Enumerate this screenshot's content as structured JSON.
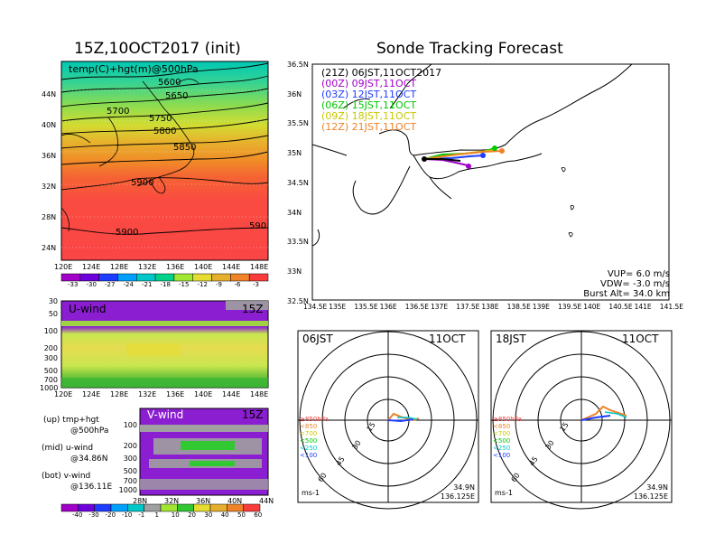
{
  "titles": {
    "left": "15Z,10OCT2017 (init)",
    "right": "Sonde Tracking Forecast"
  },
  "map500": {
    "label": "temp(C)+hgt(m)@500hPa",
    "xticks": [
      "120E",
      "124E",
      "128E",
      "132E",
      "136E",
      "140E",
      "144E",
      "148E"
    ],
    "yticks": [
      "24N",
      "28N",
      "32N",
      "36N",
      "40N",
      "44N"
    ],
    "contour_labels": [
      "5600",
      "5650",
      "5700",
      "5750",
      "5800",
      "5850",
      "5900",
      "5900",
      "590"
    ],
    "colorbar": [
      "-33",
      "-30",
      "-27",
      "-24",
      "-21",
      "-18",
      "-15",
      "-12",
      "-9",
      "-6",
      "-3"
    ],
    "colors": [
      "#a000c8",
      "#6e00dc",
      "#1e3cff",
      "#00a0ff",
      "#00c8c8",
      "#00d28c",
      "#a0e632",
      "#e6dc32",
      "#e6af2d",
      "#f08228",
      "#fa3c3c"
    ]
  },
  "uwind": {
    "label": "U-wind",
    "time": "15Z",
    "yticks": [
      "30",
      "50",
      "100",
      "200",
      "300",
      "500",
      "700",
      "1000"
    ],
    "xticks": [
      "120E",
      "124E",
      "128E",
      "132E",
      "136E",
      "140E",
      "144E",
      "148E"
    ]
  },
  "vwind": {
    "label": "V-wind",
    "time": "15Z",
    "yticks": [
      "100",
      "200",
      "300",
      "500",
      "700",
      "1000"
    ],
    "xticks": [
      "28N",
      "32N",
      "36N",
      "40N",
      "44N"
    ],
    "colorbar": [
      "-40",
      "-30",
      "-20",
      "-10",
      "-1",
      "1",
      "10",
      "20",
      "30",
      "40",
      "50",
      "60"
    ],
    "colors": [
      "#a000c8",
      "#6e00dc",
      "#1e3cff",
      "#00a0ff",
      "#00c8c8",
      "#a0a0a0",
      "#a0e632",
      "#32c832",
      "#e6dc32",
      "#e6af2d",
      "#f08228",
      "#fa3c3c"
    ]
  },
  "side_text": {
    "up1": "(up) tmp+hgt",
    "up2": "@500hPa",
    "mid1": "(mid) u-wind",
    "mid2": "@34.86N",
    "bot1": "(bot) v-wind",
    "bot2": "@136.11E"
  },
  "track": {
    "legend": [
      {
        "text": "(21Z) 06JST,11OCT2017",
        "color": "#000000"
      },
      {
        "text": "(00Z) 09JST,11OCT",
        "color": "#a000c8"
      },
      {
        "text": "(03Z) 12JST,11OCT",
        "color": "#1e3cff"
      },
      {
        "text": "(06Z) 15JST,11OCT",
        "color": "#00c800"
      },
      {
        "text": "(09Z) 18JST,11OCT",
        "color": "#c8c800"
      },
      {
        "text": "(12Z) 21JST,11OCT",
        "color": "#f08228"
      }
    ],
    "xticks": [
      "134.5E",
      "135E",
      "135.5E",
      "136E",
      "136.5E",
      "137E",
      "137.5E",
      "138E",
      "138.5E",
      "139E",
      "139.5E",
      "140E",
      "140.5E",
      "141E",
      "141.5E"
    ],
    "yticks": [
      "36.5N",
      "36N",
      "35.5N",
      "35N",
      "34.5N",
      "34N",
      "33.5N",
      "33N",
      "32.5N"
    ],
    "params": [
      "VUP= 6.0 m/s",
      "VDW= -3.0 m/s",
      "Burst Alt= 34.0 km"
    ]
  },
  "hodo_left": {
    "time": "06JST",
    "date": "11OCT",
    "rings": [
      "15",
      "30",
      "45",
      "60"
    ],
    "levels": [
      {
        "text": "≥850hPa",
        "color": "#fa3c3c"
      },
      {
        "text": "<850",
        "color": "#f08228"
      },
      {
        "text": "<700",
        "color": "#c8c800"
      },
      {
        "text": "<500",
        "color": "#00c800"
      },
      {
        "text": "<250",
        "color": "#00c8c8"
      },
      {
        "text": "<100",
        "color": "#1e3cff"
      }
    ],
    "unit": "ms-1",
    "lat": "34.9N",
    "lon": "136.125E"
  },
  "hodo_right": {
    "time": "18JST",
    "date": "11OCT",
    "rings": [
      "15",
      "30",
      "45",
      "60"
    ],
    "levels": [
      {
        "text": "≥850hPa",
        "color": "#fa3c3c"
      },
      {
        "text": "<850",
        "color": "#f08228"
      },
      {
        "text": "<700",
        "color": "#c8c800"
      },
      {
        "text": "<500",
        "color": "#00c800"
      },
      {
        "text": "<250",
        "color": "#00c8c8"
      },
      {
        "text": "<100",
        "color": "#1e3cff"
      }
    ],
    "unit": "ms-1",
    "lat": "34.9N",
    "lon": "136.125E"
  }
}
